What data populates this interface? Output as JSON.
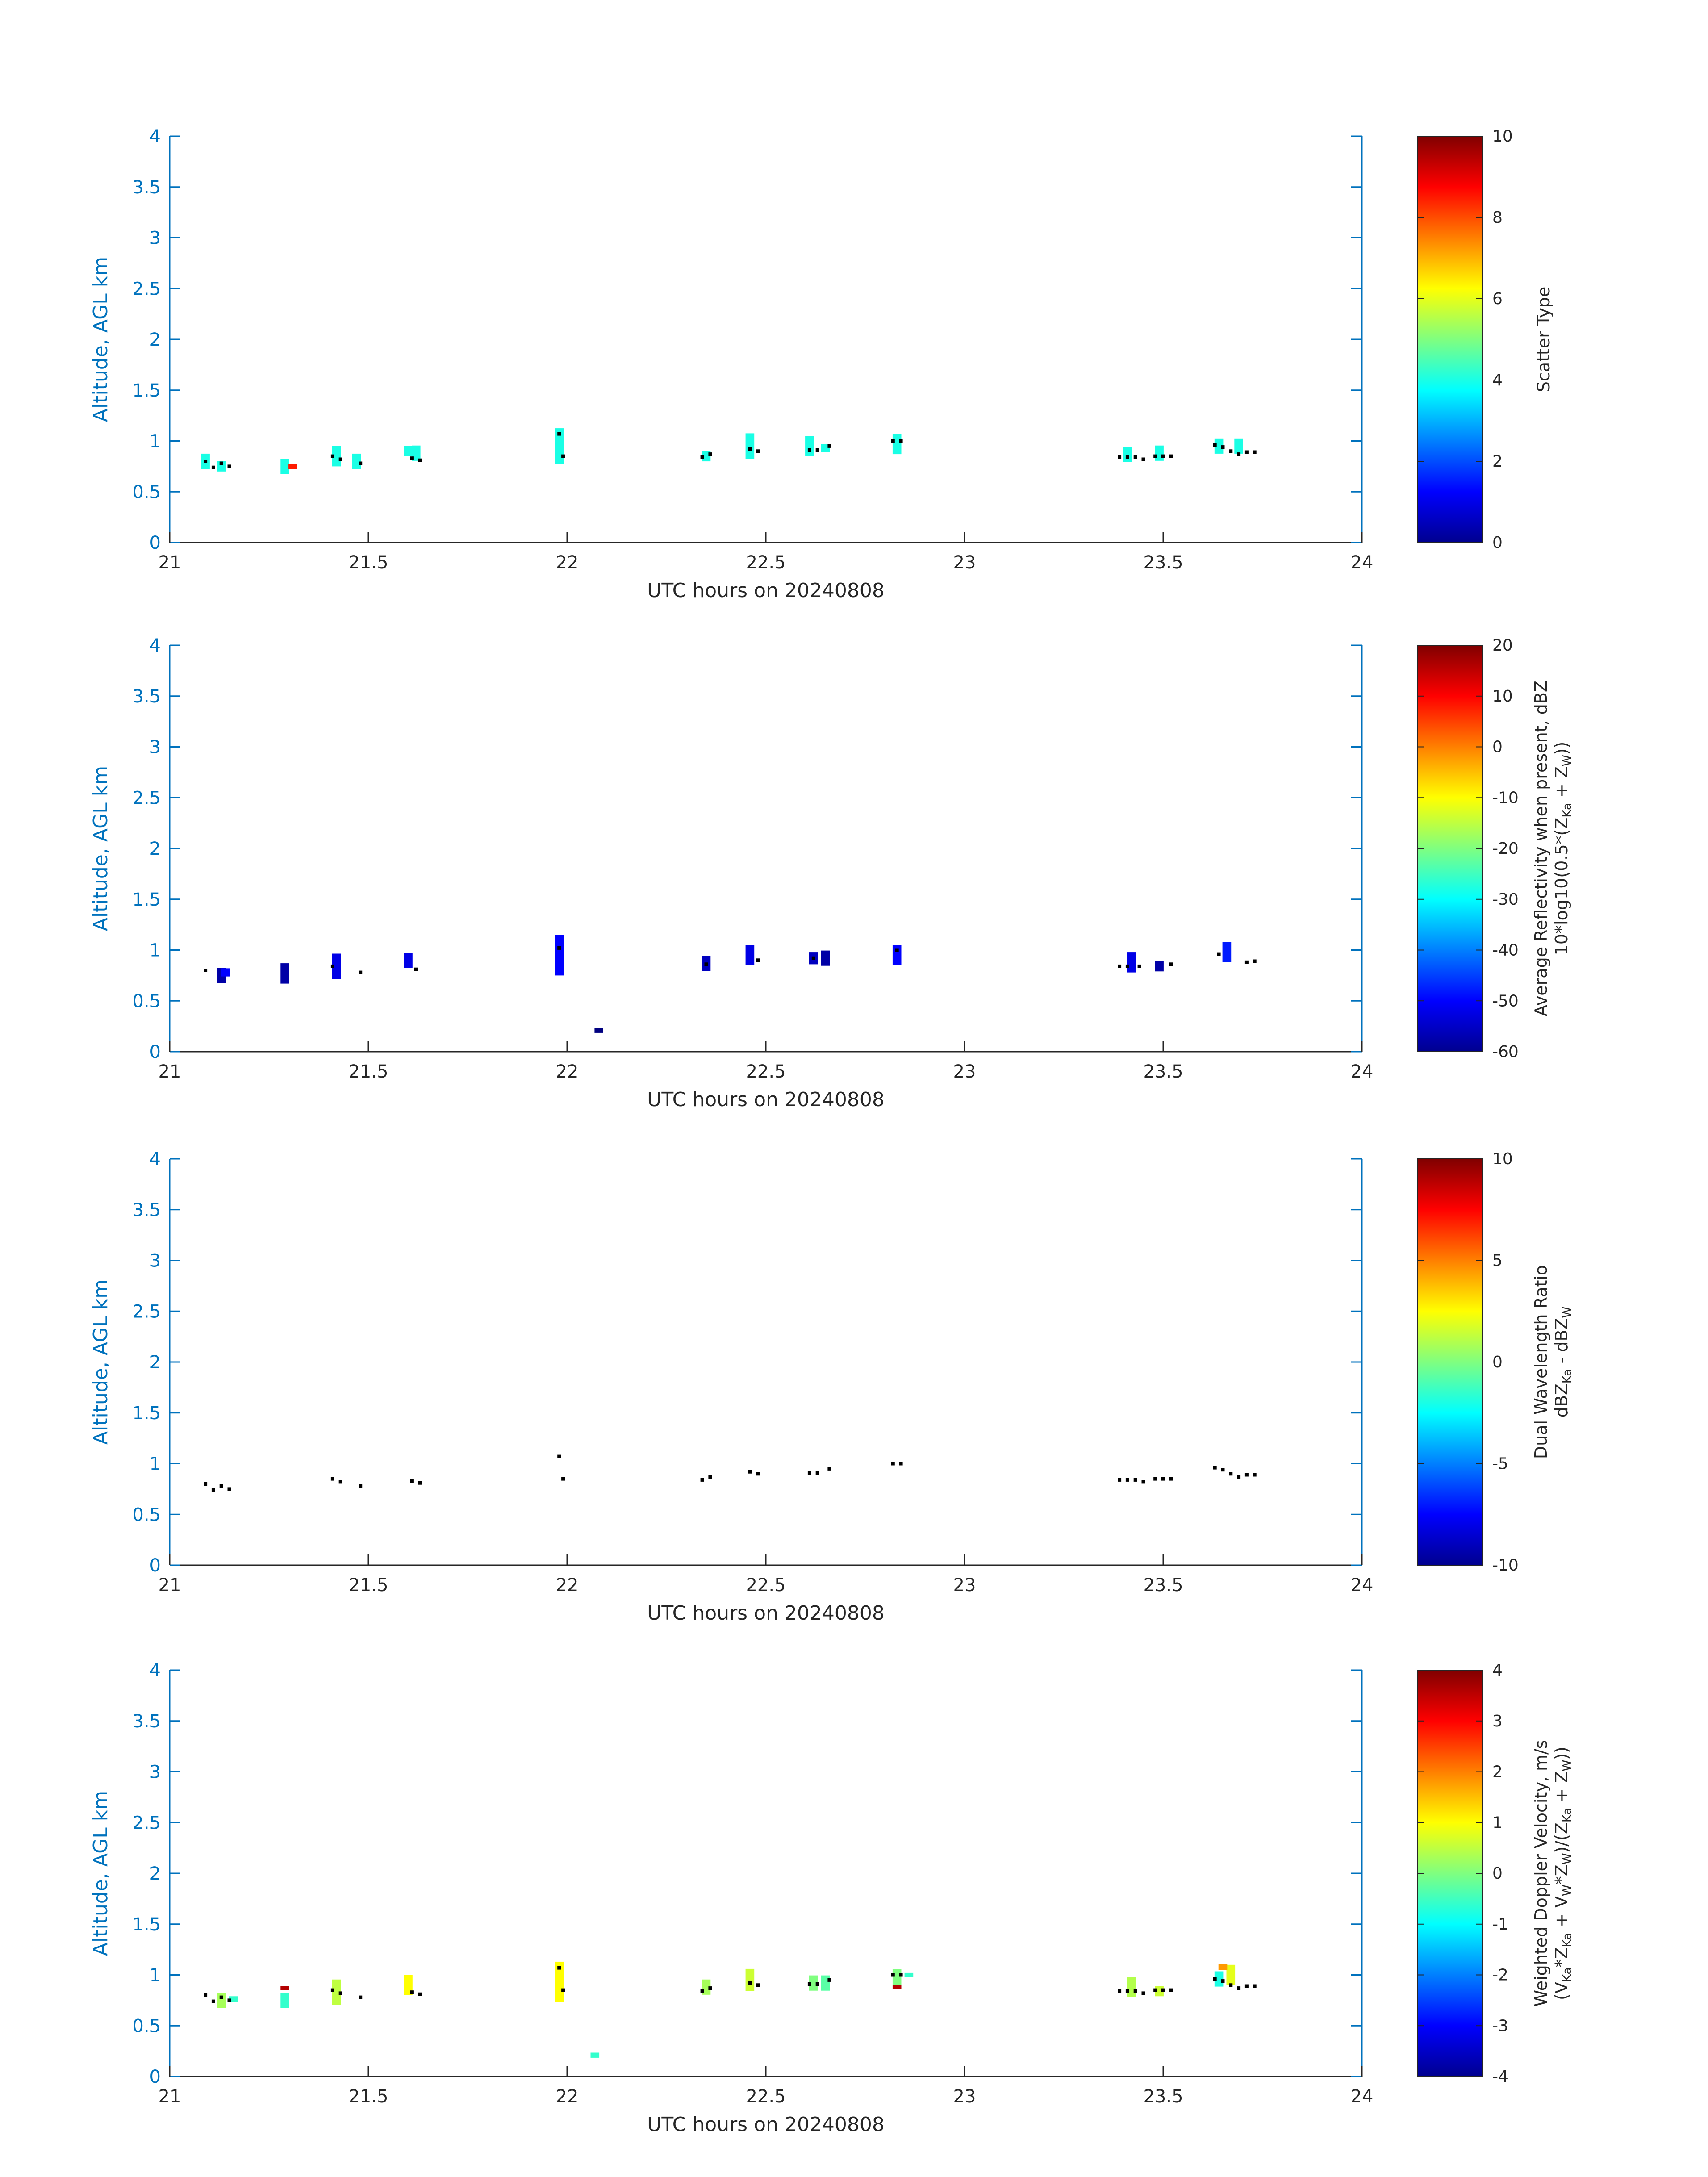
{
  "chart_data": [
    {
      "type": "heatmap",
      "xlabel": "UTC hours on 20240808",
      "ylabel": "Altitude, AGL km",
      "xlim": [
        21,
        24
      ],
      "ylim": [
        0,
        4
      ],
      "xticks": [
        "21",
        "21.5",
        "22",
        "22.5",
        "23",
        "23.5",
        "24"
      ],
      "yticks": [
        "0",
        "0.5",
        "1",
        "1.5",
        "2",
        "2.5",
        "3",
        "3.5",
        "4"
      ],
      "colorbar": {
        "clim": [
          0,
          10
        ],
        "ticks": [
          "0",
          "2",
          "4",
          "6",
          "8",
          "10"
        ],
        "label_lines": [
          "Scatter Type"
        ]
      },
      "cells": [
        [
          21.09,
          0.8,
          0.15,
          4
        ],
        [
          21.13,
          0.75,
          0.1,
          4
        ],
        [
          21.29,
          0.75,
          0.15,
          4
        ],
        [
          21.31,
          0.75,
          0.05,
          8.5
        ],
        [
          21.42,
          0.85,
          0.2,
          4
        ],
        [
          21.47,
          0.8,
          0.15,
          4
        ],
        [
          21.6,
          0.9,
          0.1,
          4
        ],
        [
          21.62,
          0.88,
          0.15,
          4
        ],
        [
          21.98,
          0.95,
          0.35,
          4
        ],
        [
          22.35,
          0.85,
          0.1,
          4
        ],
        [
          22.46,
          0.95,
          0.25,
          4
        ],
        [
          22.61,
          0.95,
          0.2,
          4
        ],
        [
          22.65,
          0.93,
          0.08,
          4
        ],
        [
          22.83,
          0.97,
          0.2,
          4
        ],
        [
          23.41,
          0.87,
          0.15,
          4
        ],
        [
          23.49,
          0.88,
          0.15,
          4
        ],
        [
          23.64,
          0.95,
          0.15,
          4
        ],
        [
          23.69,
          0.95,
          0.15,
          4
        ]
      ],
      "dots": [
        [
          21.09,
          0.8
        ],
        [
          21.11,
          0.74
        ],
        [
          21.13,
          0.78
        ],
        [
          21.15,
          0.75
        ],
        [
          21.41,
          0.85
        ],
        [
          21.43,
          0.82
        ],
        [
          21.48,
          0.78
        ],
        [
          21.61,
          0.83
        ],
        [
          21.63,
          0.81
        ],
        [
          21.98,
          1.07
        ],
        [
          21.99,
          0.85
        ],
        [
          22.34,
          0.84
        ],
        [
          22.36,
          0.87
        ],
        [
          22.46,
          0.92
        ],
        [
          22.48,
          0.9
        ],
        [
          22.61,
          0.91
        ],
        [
          22.63,
          0.91
        ],
        [
          22.66,
          0.95
        ],
        [
          22.82,
          1.0
        ],
        [
          22.84,
          1.0
        ],
        [
          23.39,
          0.84
        ],
        [
          23.41,
          0.84
        ],
        [
          23.43,
          0.84
        ],
        [
          23.45,
          0.82
        ],
        [
          23.48,
          0.85
        ],
        [
          23.5,
          0.85
        ],
        [
          23.52,
          0.85
        ],
        [
          23.63,
          0.96
        ],
        [
          23.65,
          0.94
        ],
        [
          23.67,
          0.9
        ],
        [
          23.69,
          0.87
        ],
        [
          23.71,
          0.89
        ],
        [
          23.73,
          0.89
        ]
      ]
    },
    {
      "type": "heatmap",
      "xlabel": "UTC hours on 20240808",
      "ylabel": "Altitude, AGL km",
      "xlim": [
        21,
        24
      ],
      "ylim": [
        0,
        4
      ],
      "xticks": [
        "21",
        "21.5",
        "22",
        "22.5",
        "23",
        "23.5",
        "24"
      ],
      "yticks": [
        "0",
        "0.5",
        "1",
        "1.5",
        "2",
        "2.5",
        "3",
        "3.5",
        "4"
      ],
      "colorbar": {
        "clim": [
          -60,
          20
        ],
        "ticks": [
          "-60",
          "-50",
          "-40",
          "-30",
          "-20",
          "-10",
          "0",
          "10",
          "20"
        ],
        "label_lines": [
          "Average Reflectivity when present, dBZ",
          "10*log10(0.5*(Z",
          "Ka",
          " + Z",
          "W",
          "))"
        ]
      },
      "cells": [
        [
          21.13,
          0.75,
          0.15,
          -57
        ],
        [
          21.14,
          0.78,
          0.08,
          -50
        ],
        [
          21.29,
          0.77,
          0.2,
          -57
        ],
        [
          21.42,
          0.84,
          0.25,
          -52
        ],
        [
          21.6,
          0.9,
          0.15,
          -52
        ],
        [
          21.98,
          0.95,
          0.4,
          -50
        ],
        [
          22.08,
          0.21,
          0.05,
          -60
        ],
        [
          22.35,
          0.87,
          0.15,
          -55
        ],
        [
          22.46,
          0.95,
          0.2,
          -52
        ],
        [
          22.62,
          0.92,
          0.12,
          -55
        ],
        [
          22.65,
          0.92,
          0.15,
          -57
        ],
        [
          22.83,
          0.95,
          0.2,
          -50
        ],
        [
          23.42,
          0.88,
          0.2,
          -52
        ],
        [
          23.49,
          0.84,
          0.1,
          -57
        ],
        [
          23.66,
          0.98,
          0.2,
          -48
        ]
      ],
      "dots": [
        [
          21.09,
          0.8
        ],
        [
          21.41,
          0.84
        ],
        [
          21.48,
          0.78
        ],
        [
          21.62,
          0.81
        ],
        [
          21.98,
          1.02
        ],
        [
          22.35,
          0.86
        ],
        [
          22.48,
          0.9
        ],
        [
          22.62,
          0.92
        ],
        [
          22.83,
          1.0
        ],
        [
          23.39,
          0.84
        ],
        [
          23.41,
          0.84
        ],
        [
          23.44,
          0.84
        ],
        [
          23.52,
          0.86
        ],
        [
          23.64,
          0.96
        ],
        [
          23.71,
          0.88
        ],
        [
          23.73,
          0.89
        ]
      ]
    },
    {
      "type": "heatmap",
      "xlabel": "UTC hours on 20240808",
      "ylabel": "Altitude, AGL km",
      "xlim": [
        21,
        24
      ],
      "ylim": [
        0,
        4
      ],
      "xticks": [
        "21",
        "21.5",
        "22",
        "22.5",
        "23",
        "23.5",
        "24"
      ],
      "yticks": [
        "0",
        "0.5",
        "1",
        "1.5",
        "2",
        "2.5",
        "3",
        "3.5",
        "4"
      ],
      "colorbar": {
        "clim": [
          -10,
          10
        ],
        "ticks": [
          "-10",
          "-5",
          "0",
          "5",
          "10"
        ],
        "label_lines": [
          "Dual Wavelength Ratio",
          "dBZ",
          "Ka",
          " - dBZ",
          "W"
        ]
      },
      "cells": [],
      "dots": [
        [
          21.09,
          0.8
        ],
        [
          21.11,
          0.74
        ],
        [
          21.13,
          0.78
        ],
        [
          21.15,
          0.75
        ],
        [
          21.41,
          0.85
        ],
        [
          21.43,
          0.82
        ],
        [
          21.48,
          0.78
        ],
        [
          21.61,
          0.83
        ],
        [
          21.63,
          0.81
        ],
        [
          21.98,
          1.07
        ],
        [
          21.99,
          0.85
        ],
        [
          22.34,
          0.84
        ],
        [
          22.36,
          0.87
        ],
        [
          22.46,
          0.92
        ],
        [
          22.48,
          0.9
        ],
        [
          22.61,
          0.91
        ],
        [
          22.63,
          0.91
        ],
        [
          22.66,
          0.95
        ],
        [
          22.82,
          1.0
        ],
        [
          22.84,
          1.0
        ],
        [
          23.39,
          0.84
        ],
        [
          23.41,
          0.84
        ],
        [
          23.43,
          0.84
        ],
        [
          23.45,
          0.82
        ],
        [
          23.48,
          0.85
        ],
        [
          23.5,
          0.85
        ],
        [
          23.52,
          0.85
        ],
        [
          23.63,
          0.96
        ],
        [
          23.65,
          0.94
        ],
        [
          23.67,
          0.9
        ],
        [
          23.69,
          0.87
        ],
        [
          23.71,
          0.89
        ],
        [
          23.73,
          0.89
        ]
      ]
    },
    {
      "type": "heatmap",
      "xlabel": "UTC hours on 20240808",
      "ylabel": "Altitude, AGL km",
      "xlim": [
        21,
        24
      ],
      "ylim": [
        0,
        4
      ],
      "xticks": [
        "21",
        "21.5",
        "22",
        "22.5",
        "23",
        "23.5",
        "24"
      ],
      "yticks": [
        "0",
        "0.5",
        "1",
        "1.5",
        "2",
        "2.5",
        "3",
        "3.5",
        "4"
      ],
      "colorbar": {
        "clim": [
          -4,
          4
        ],
        "ticks": [
          "-4",
          "-3",
          "-2",
          "-1",
          "0",
          "1",
          "2",
          "3",
          "4"
        ],
        "label_lines": [
          "Weighted Doppler Velocity, m/s",
          "(V",
          "Ka",
          "*Z",
          "Ka",
          " + V",
          "W",
          "*Z",
          "W",
          ")/(Z",
          "Ka",
          " + Z",
          "W",
          "))"
        ]
      },
      "cells": [
        [
          21.13,
          0.75,
          0.15,
          0.3
        ],
        [
          21.16,
          0.76,
          0.06,
          -0.6
        ],
        [
          21.29,
          0.75,
          0.15,
          -0.6
        ],
        [
          21.29,
          0.87,
          0.04,
          3.6
        ],
        [
          21.42,
          0.83,
          0.25,
          0.5
        ],
        [
          21.6,
          0.9,
          0.2,
          1.0
        ],
        [
          21.98,
          0.93,
          0.4,
          1.0
        ],
        [
          22.07,
          0.21,
          0.05,
          -0.6
        ],
        [
          22.35,
          0.88,
          0.15,
          0.3
        ],
        [
          22.46,
          0.95,
          0.22,
          0.6
        ],
        [
          22.62,
          0.92,
          0.15,
          0.0
        ],
        [
          22.65,
          0.92,
          0.15,
          -0.3
        ],
        [
          22.83,
          0.98,
          0.15,
          0.0
        ],
        [
          22.83,
          0.88,
          0.04,
          3.6
        ],
        [
          22.86,
          1.0,
          0.04,
          -0.6
        ],
        [
          23.42,
          0.88,
          0.2,
          0.4
        ],
        [
          23.49,
          0.84,
          0.1,
          0.6
        ],
        [
          23.64,
          0.96,
          0.15,
          -0.8
        ],
        [
          23.67,
          1.0,
          0.2,
          0.8
        ],
        [
          23.65,
          1.08,
          0.06,
          1.8
        ]
      ],
      "dots": [
        [
          21.09,
          0.8
        ],
        [
          21.11,
          0.74
        ],
        [
          21.13,
          0.78
        ],
        [
          21.15,
          0.75
        ],
        [
          21.41,
          0.85
        ],
        [
          21.43,
          0.82
        ],
        [
          21.48,
          0.78
        ],
        [
          21.61,
          0.83
        ],
        [
          21.63,
          0.81
        ],
        [
          21.98,
          1.07
        ],
        [
          21.99,
          0.85
        ],
        [
          22.34,
          0.84
        ],
        [
          22.36,
          0.87
        ],
        [
          22.46,
          0.92
        ],
        [
          22.48,
          0.9
        ],
        [
          22.61,
          0.91
        ],
        [
          22.63,
          0.91
        ],
        [
          22.66,
          0.95
        ],
        [
          22.82,
          1.0
        ],
        [
          22.84,
          1.0
        ],
        [
          23.39,
          0.84
        ],
        [
          23.41,
          0.84
        ],
        [
          23.43,
          0.84
        ],
        [
          23.45,
          0.82
        ],
        [
          23.48,
          0.85
        ],
        [
          23.5,
          0.85
        ],
        [
          23.52,
          0.85
        ],
        [
          23.63,
          0.96
        ],
        [
          23.65,
          0.94
        ],
        [
          23.67,
          0.9
        ],
        [
          23.69,
          0.87
        ],
        [
          23.71,
          0.89
        ],
        [
          23.73,
          0.89
        ]
      ]
    }
  ]
}
